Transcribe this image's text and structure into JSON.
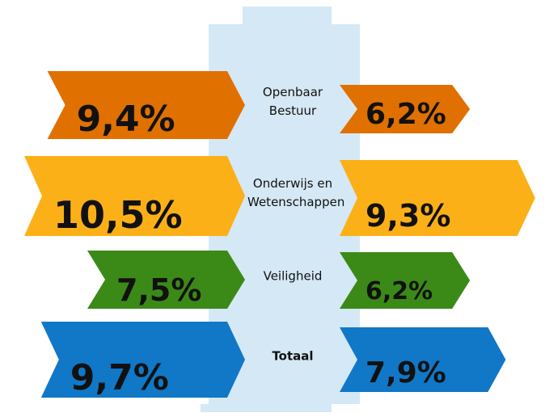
{
  "chart_data": {
    "type": "arrow",
    "categories": [
      "Openbaar Bestuur",
      "Onderwijs en Wetenschappen",
      "Veiligheid",
      "Totaal"
    ],
    "colors": [
      "#e07000",
      "#fbb017",
      "#3b8a18",
      "#1177c7"
    ],
    "series": [
      {
        "values": [
          9.4,
          10.5,
          7.5,
          9.7
        ],
        "value_labels": [
          "9,4%",
          "10,5%",
          "7,5%",
          "9,7%"
        ]
      },
      {
        "values": [
          6.2,
          9.3,
          6.2,
          7.9
        ],
        "value_labels": [
          "6,2%",
          "9,3%",
          "6,2%",
          "7,9%"
        ]
      }
    ]
  }
}
